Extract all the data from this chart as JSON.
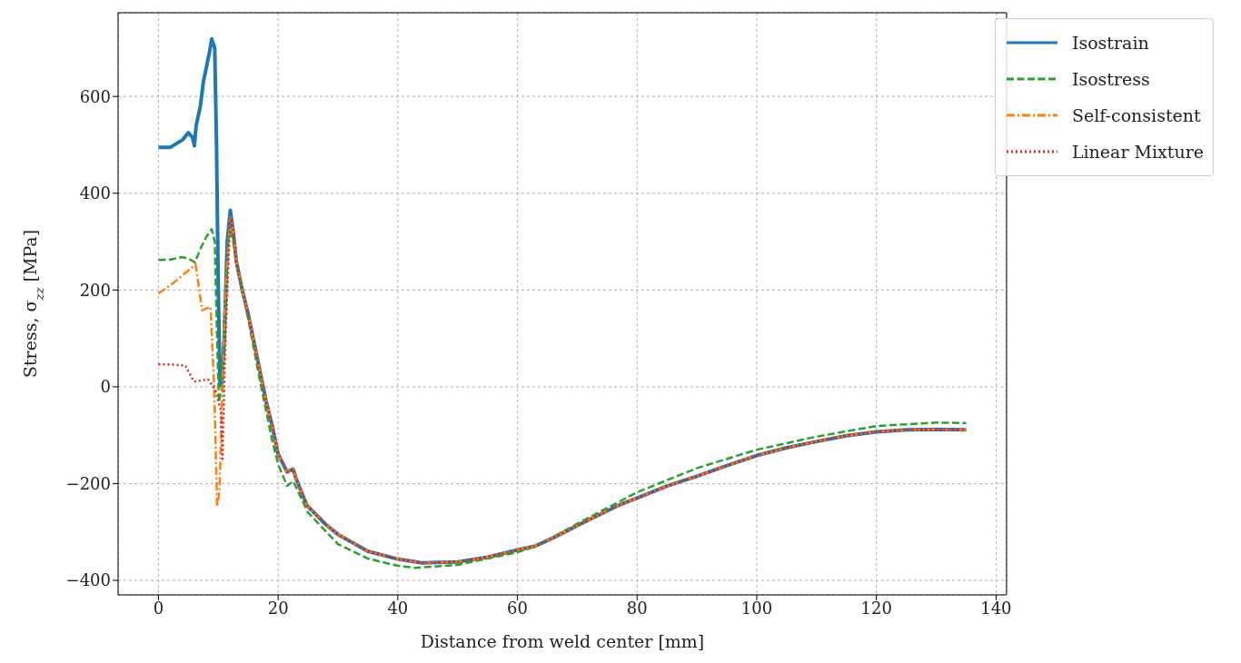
{
  "chart_data": {
    "type": "line",
    "xlabel": "Distance from weld center [mm]",
    "ylabel": "Stress, σ$_{zz}$ [MPa]",
    "xlim": [
      -6.75,
      141.75
    ],
    "ylim": [
      -430,
      773
    ],
    "xticks": [
      0,
      20,
      40,
      60,
      80,
      100,
      120,
      140
    ],
    "yticks": [
      -400,
      -200,
      0,
      200,
      400,
      600
    ],
    "grid": true,
    "legend": "top right",
    "series": [
      {
        "name": "Isostrain",
        "color": "#1f77b4",
        "line_style": "solid",
        "x": [
          0,
          2,
          4,
          5,
          5.7,
          6,
          6.3,
          7,
          7.5,
          8.5,
          8.9,
          9.4,
          9.7,
          10,
          10.3,
          10.6,
          11,
          11.5,
          12,
          12.5,
          13,
          14,
          15,
          16,
          17,
          18,
          19,
          20,
          21.5,
          22.5,
          23,
          24.8,
          28,
          30,
          35,
          40,
          44,
          50,
          55,
          60,
          63,
          66,
          70,
          76.7,
          80,
          85,
          90,
          95,
          100,
          105,
          110,
          115,
          120,
          125,
          130,
          135
        ],
        "values": [
          495,
          495,
          510,
          525,
          515,
          498,
          540,
          580,
          630,
          690,
          719,
          700,
          500,
          200,
          3,
          10,
          100,
          300,
          365,
          320,
          260,
          200,
          150,
          90,
          30,
          -30,
          -80,
          -139,
          -176,
          -170,
          -190,
          -245,
          -285,
          -305,
          -340,
          -356,
          -364,
          -362,
          -352,
          -337,
          -329,
          -312,
          -287,
          -246,
          -230,
          -205,
          -185,
          -163,
          -142,
          -126,
          -113,
          -101,
          -93,
          -89,
          -88,
          -89
        ]
      },
      {
        "name": "Isostress",
        "color": "#2ca02c",
        "line_style": "dashed",
        "x": [
          0,
          2,
          3.9,
          5,
          6.1,
          7,
          8,
          8.9,
          9.4,
          9.8,
          10.1,
          10.6,
          11,
          11.8,
          12.5,
          13,
          14,
          15,
          17,
          19,
          20,
          21.5,
          22.5,
          25,
          30,
          35,
          40,
          43,
          50,
          55,
          60,
          63,
          66,
          70,
          80,
          90,
          100,
          110,
          120,
          130,
          135
        ],
        "values": [
          262,
          263,
          268,
          265,
          257,
          285,
          310,
          326,
          300,
          100,
          -32,
          0,
          150,
          330,
          300,
          260,
          200,
          140,
          10,
          -110,
          -160,
          -205,
          -195,
          -260,
          -325,
          -355,
          -370,
          -374,
          -368,
          -355,
          -342,
          -330,
          -310,
          -283,
          -218,
          -168,
          -130,
          -103,
          -81,
          -74,
          -75
        ]
      },
      {
        "name": "Self-consistent",
        "color": "#ff7f0e",
        "line_style": "dashdot",
        "x": [
          0,
          2,
          4,
          6.2,
          7.3,
          8.7,
          9.3,
          9.8,
          10.2,
          10.7,
          11.2,
          12,
          12.5,
          13,
          14,
          15,
          16,
          17,
          18,
          19,
          20,
          21.5,
          22.5,
          23,
          24.8,
          28,
          30,
          35,
          40,
          44,
          50,
          55,
          60,
          63,
          66,
          70,
          76.7,
          80,
          85,
          90,
          95,
          100,
          105,
          110,
          115,
          120,
          125,
          130,
          135
        ],
        "values": [
          193,
          210,
          230,
          253,
          158,
          165,
          3,
          -248,
          -213,
          0,
          200,
          350,
          320,
          260,
          200,
          150,
          90,
          30,
          -30,
          -80,
          -139,
          -176,
          -170,
          -190,
          -245,
          -285,
          -305,
          -340,
          -356,
          -364,
          -362,
          -352,
          -337,
          -329,
          -312,
          -287,
          -246,
          -230,
          -205,
          -185,
          -163,
          -142,
          -126,
          -113,
          -101,
          -93,
          -89,
          -88,
          -89
        ]
      },
      {
        "name": "Linear Mixture",
        "color": "#d62728",
        "line_style": "dotted",
        "x": [
          0,
          2,
          4.5,
          5.9,
          8.3,
          9.5,
          10.4,
          10.7,
          11.2,
          12,
          12.5,
          13,
          14,
          15,
          16,
          17,
          18,
          19,
          20,
          21.5,
          22.5,
          23,
          24.8,
          28,
          30,
          35,
          40,
          44,
          50,
          55,
          60,
          63,
          66,
          70,
          76.7,
          80,
          85,
          90,
          95,
          100,
          105,
          110,
          115,
          120,
          125,
          130,
          135
        ],
        "values": [
          46,
          46,
          44,
          11,
          15,
          -6,
          -49,
          -149,
          100,
          350,
          320,
          260,
          200,
          150,
          90,
          30,
          -30,
          -80,
          -139,
          -176,
          -170,
          -190,
          -245,
          -285,
          -305,
          -340,
          -356,
          -364,
          -362,
          -352,
          -337,
          -329,
          -312,
          -287,
          -246,
          -230,
          -205,
          -185,
          -163,
          -142,
          -126,
          -113,
          -101,
          -93,
          -89,
          -88,
          -89
        ]
      }
    ]
  }
}
